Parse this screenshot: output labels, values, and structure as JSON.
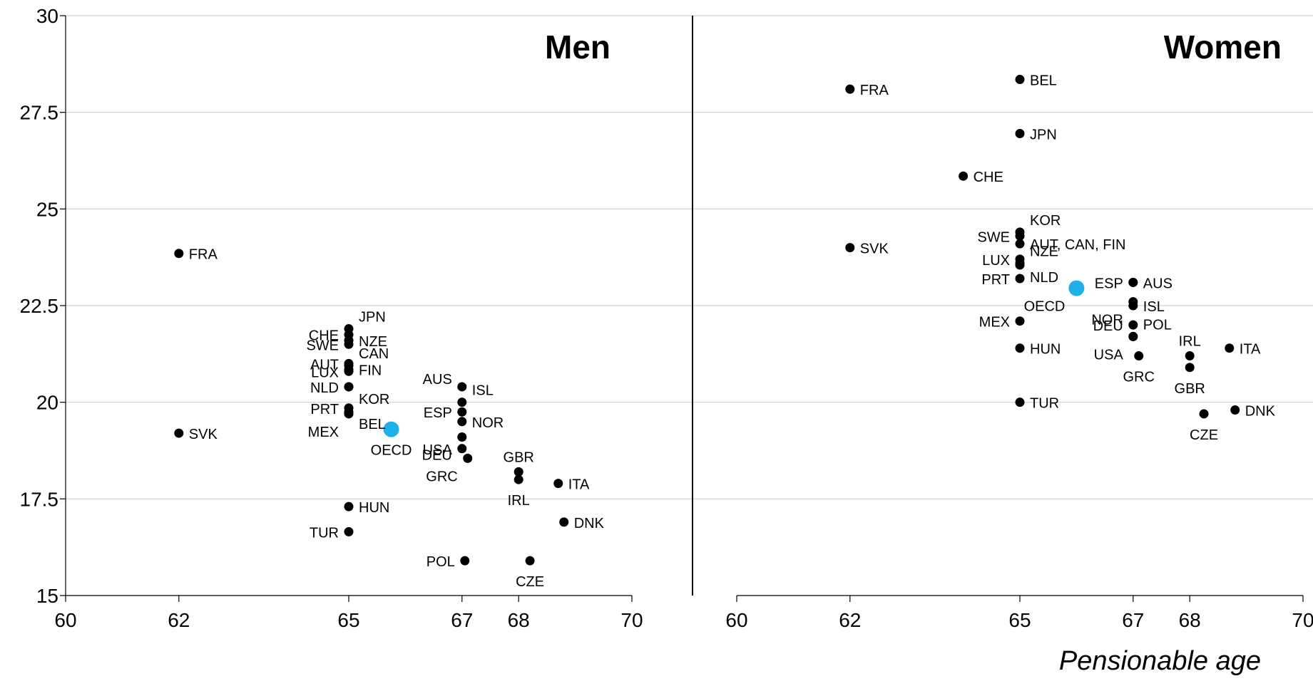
{
  "chart_data": {
    "type": "scatter",
    "title": "",
    "xlabel": "Pensionable age",
    "ylabel": "",
    "xlim": [
      60,
      70
    ],
    "ylim": [
      15,
      30
    ],
    "x_ticks": [
      60,
      62,
      65,
      67,
      68,
      70
    ],
    "y_ticks": [
      15,
      17.5,
      20,
      22.5,
      25,
      27.5,
      30
    ],
    "y_tick_labels": [
      "15",
      "17.5",
      "20",
      "22.5",
      "25",
      "27.5",
      "30"
    ],
    "grid": "horizontal",
    "highlight_color": "#1EB1E8",
    "point_color": "#000000",
    "panels": [
      {
        "title": "Men",
        "points": [
          {
            "label": "FRA",
            "x": 62,
            "y": 23.85
          },
          {
            "label": "SVK",
            "x": 62,
            "y": 19.2
          },
          {
            "label": "JPN",
            "x": 65,
            "y": 21.9
          },
          {
            "label": "CHE",
            "x": 65,
            "y": 21.75
          },
          {
            "label": "SWE",
            "x": 65,
            "y": 21.5
          },
          {
            "label": "NZE",
            "x": 65,
            "y": 21.6
          },
          {
            "label": "AUT",
            "x": 65,
            "y": 21.0
          },
          {
            "label": "CAN",
            "x": 65,
            "y": 20.95
          },
          {
            "label": "LUX",
            "x": 65,
            "y": 20.8
          },
          {
            "label": "FIN",
            "x": 65,
            "y": 20.85
          },
          {
            "label": "NLD",
            "x": 65,
            "y": 20.4
          },
          {
            "label": "KOR",
            "x": 65,
            "y": 20.4
          },
          {
            "label": "PRT",
            "x": 65,
            "y": 19.85
          },
          {
            "label": "BEL",
            "x": 65,
            "y": 19.75
          },
          {
            "label": "MEX",
            "x": 65,
            "y": 19.7
          },
          {
            "label": "OECD",
            "x": 65.75,
            "y": 19.3,
            "highlight": true
          },
          {
            "label": "AUS",
            "x": 67,
            "y": 20.4
          },
          {
            "label": "ISL",
            "x": 67,
            "y": 20.0
          },
          {
            "label": "ESP",
            "x": 67,
            "y": 19.75
          },
          {
            "label": "NOR",
            "x": 67,
            "y": 19.5
          },
          {
            "label": "DEU",
            "x": 67,
            "y": 19.1
          },
          {
            "label": "USA",
            "x": 67,
            "y": 18.8
          },
          {
            "label": "GRC",
            "x": 67.1,
            "y": 18.55
          },
          {
            "label": "GBR",
            "x": 68,
            "y": 18.2
          },
          {
            "label": "IRL",
            "x": 68,
            "y": 18.0
          },
          {
            "label": "ITA",
            "x": 68.7,
            "y": 17.9
          },
          {
            "label": "DNK",
            "x": 68.8,
            "y": 16.9
          },
          {
            "label": "HUN",
            "x": 65,
            "y": 17.3
          },
          {
            "label": "TUR",
            "x": 65,
            "y": 16.65
          },
          {
            "label": "POL",
            "x": 67.05,
            "y": 15.9
          },
          {
            "label": "CZE",
            "x": 68.2,
            "y": 15.9
          }
        ]
      },
      {
        "title": "Women",
        "points": [
          {
            "label": "BEL",
            "x": 65,
            "y": 28.35
          },
          {
            "label": "FRA",
            "x": 62,
            "y": 28.1
          },
          {
            "label": "JPN",
            "x": 65,
            "y": 26.95
          },
          {
            "label": "CHE",
            "x": 64,
            "y": 25.85
          },
          {
            "label": "SVK",
            "x": 62,
            "y": 24.0
          },
          {
            "label": "KOR",
            "x": 65,
            "y": 24.4
          },
          {
            "label": "SWE",
            "x": 65,
            "y": 24.3
          },
          {
            "label": "AUT, CAN, FIN",
            "x": 65,
            "y": 24.1
          },
          {
            "label": "LUX",
            "x": 65,
            "y": 23.7
          },
          {
            "label": "NZE",
            "x": 65,
            "y": 23.6
          },
          {
            "label": "NLD",
            "x": 65,
            "y": 23.55
          },
          {
            "label": "PRT",
            "x": 65,
            "y": 23.2
          },
          {
            "label": "OECD",
            "x": 66,
            "y": 22.95,
            "highlight": true
          },
          {
            "label": "ESP",
            "x": 67,
            "y": 23.1
          },
          {
            "label": "AUS",
            "x": 67,
            "y": 23.1
          },
          {
            "label": "NOR",
            "x": 67,
            "y": 22.6
          },
          {
            "label": "ISL",
            "x": 67,
            "y": 22.5
          },
          {
            "label": "MEX",
            "x": 65,
            "y": 22.1
          },
          {
            "label": "DEU",
            "x": 67,
            "y": 22.0
          },
          {
            "label": "POL",
            "x": 67,
            "y": 21.7
          },
          {
            "label": "USA",
            "x": 67,
            "y": 21.7
          },
          {
            "label": "HUN",
            "x": 65,
            "y": 21.4
          },
          {
            "label": "GRC",
            "x": 67.1,
            "y": 21.2
          },
          {
            "label": "IRL",
            "x": 68,
            "y": 21.2
          },
          {
            "label": "ITA",
            "x": 68.7,
            "y": 21.4
          },
          {
            "label": "GBR",
            "x": 68,
            "y": 20.9
          },
          {
            "label": "TUR",
            "x": 65,
            "y": 20.0
          },
          {
            "label": "DNK",
            "x": 68.8,
            "y": 19.8
          },
          {
            "label": "CZE",
            "x": 68.25,
            "y": 19.7
          }
        ]
      }
    ]
  }
}
